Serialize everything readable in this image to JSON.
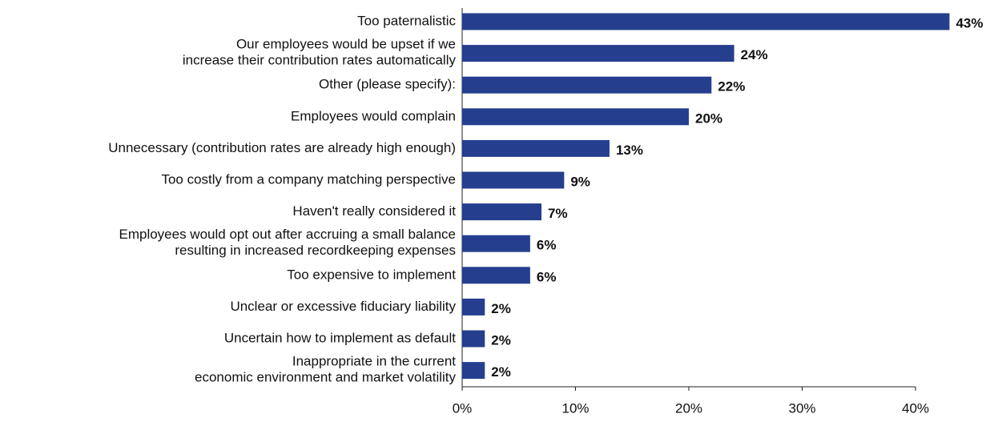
{
  "chart_data": {
    "type": "bar",
    "orientation": "horizontal",
    "categories": [
      "Too paternalistic",
      "Our employees would be upset if we\nincrease their contribution rates automatically",
      "Other (please specify):",
      "Employees would complain",
      "Unnecessary (contribution rates are already high enough)",
      "Too costly from a company matching perspective",
      "Haven't really considered it",
      "Employees would opt out after accruing a small balance\nresulting in increased recordkeeping expenses",
      "Too expensive to implement",
      "Unclear or excessive fiduciary liability",
      "Uncertain how to implement as default",
      "Inappropriate in the current\neconomic environment and market volatility"
    ],
    "values": [
      43,
      24,
      22,
      20,
      13,
      9,
      7,
      6,
      6,
      2,
      2,
      2
    ],
    "value_labels": [
      "43%",
      "24%",
      "22%",
      "20%",
      "13%",
      "9%",
      "7%",
      "6%",
      "6%",
      "2%",
      "2%",
      "2%"
    ],
    "color": "#253f8e",
    "xlim": [
      0,
      40
    ],
    "xticks": [
      {
        "value": 0,
        "label": "0%"
      },
      {
        "value": 10,
        "label": "10%"
      },
      {
        "value": 20,
        "label": "20%"
      },
      {
        "value": 30,
        "label": "30%"
      },
      {
        "value": 40,
        "label": "40%"
      }
    ],
    "grid": false
  }
}
